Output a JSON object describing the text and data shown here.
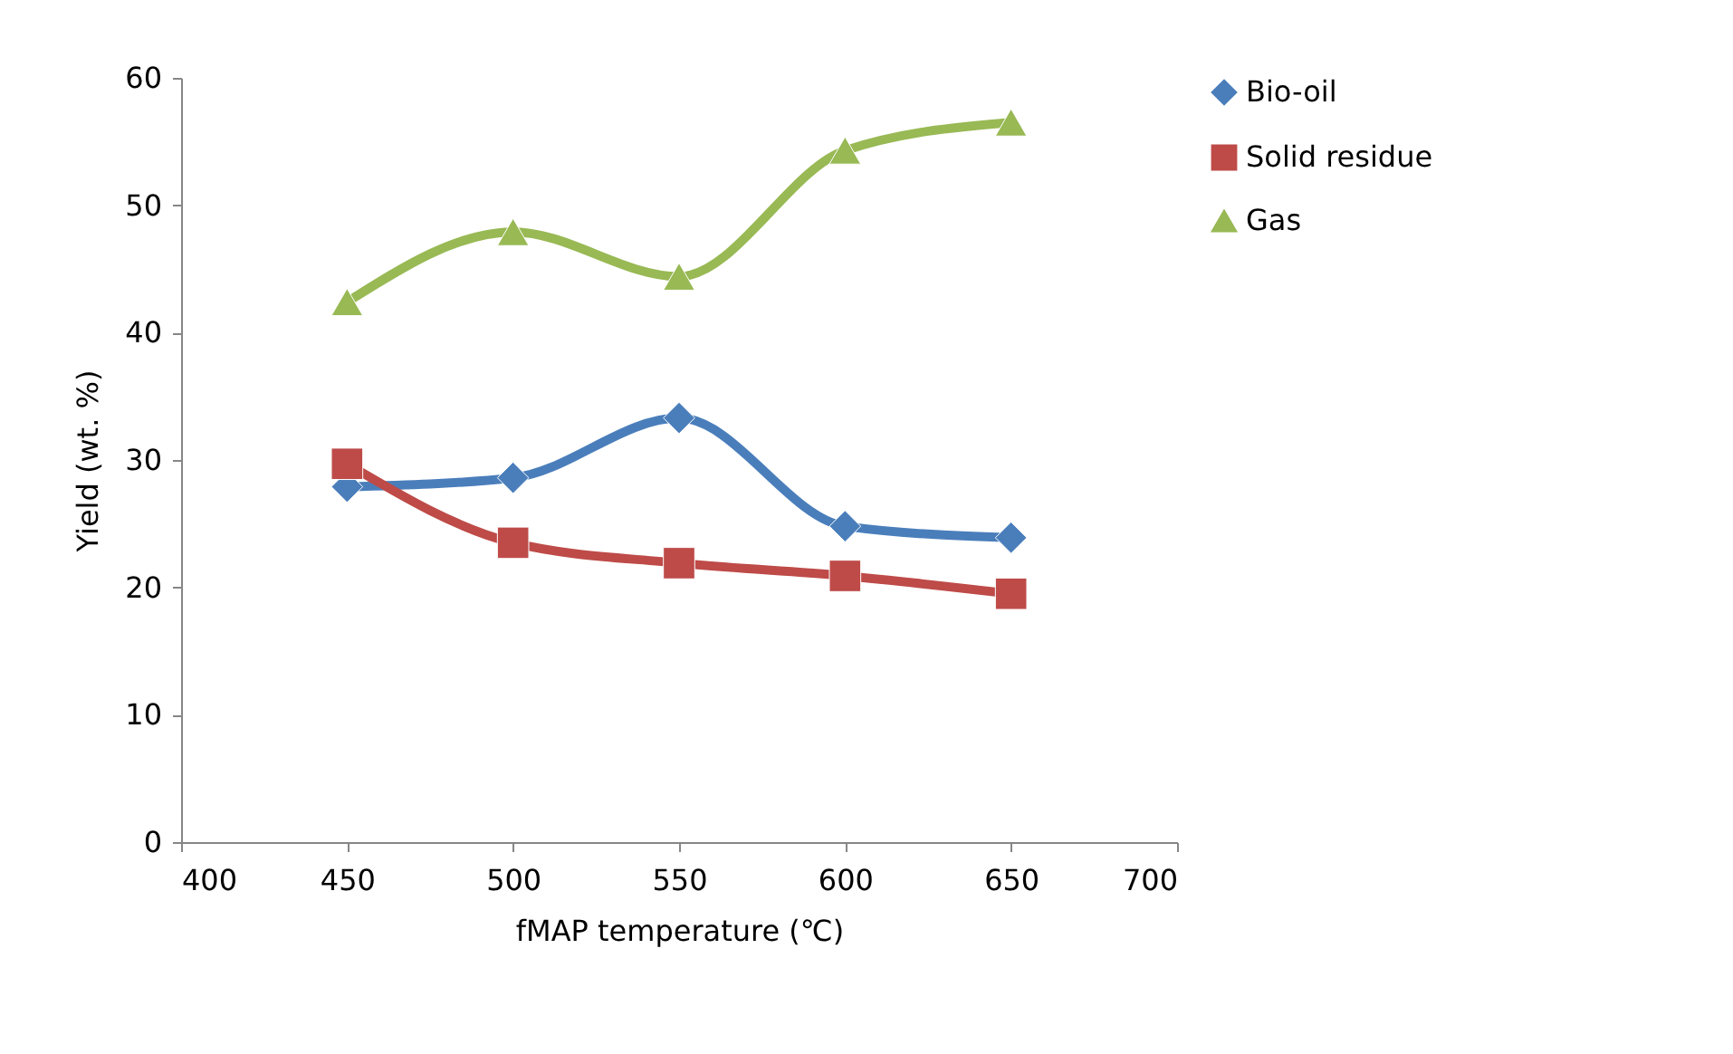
{
  "chart_data": {
    "type": "line",
    "xlabel": "fMAP temperature (℃)",
    "ylabel": "Yield (wt. %)",
    "x": [
      450,
      500,
      550,
      600,
      650
    ],
    "series": [
      {
        "name": "Bio-oil",
        "color": "#4a7ebb",
        "marker": "diamond",
        "values": [
          27.9,
          28.6,
          33.3,
          24.8,
          23.9
        ]
      },
      {
        "name": "Solid residue",
        "color": "#be4b48",
        "marker": "square",
        "values": [
          29.7,
          23.5,
          21.9,
          20.9,
          19.5
        ]
      },
      {
        "name": "Gas",
        "color": "#98b954",
        "marker": "triangle",
        "values": [
          42.4,
          47.9,
          44.4,
          54.3,
          56.5
        ]
      }
    ],
    "xlim": [
      400,
      700
    ],
    "xticks": [
      400,
      450,
      500,
      550,
      600,
      650,
      700
    ],
    "ylim": [
      0,
      60
    ],
    "yticks": [
      0,
      10,
      20,
      30,
      40,
      50,
      60
    ],
    "grid": false,
    "legend": "right",
    "line_style": "solid"
  }
}
